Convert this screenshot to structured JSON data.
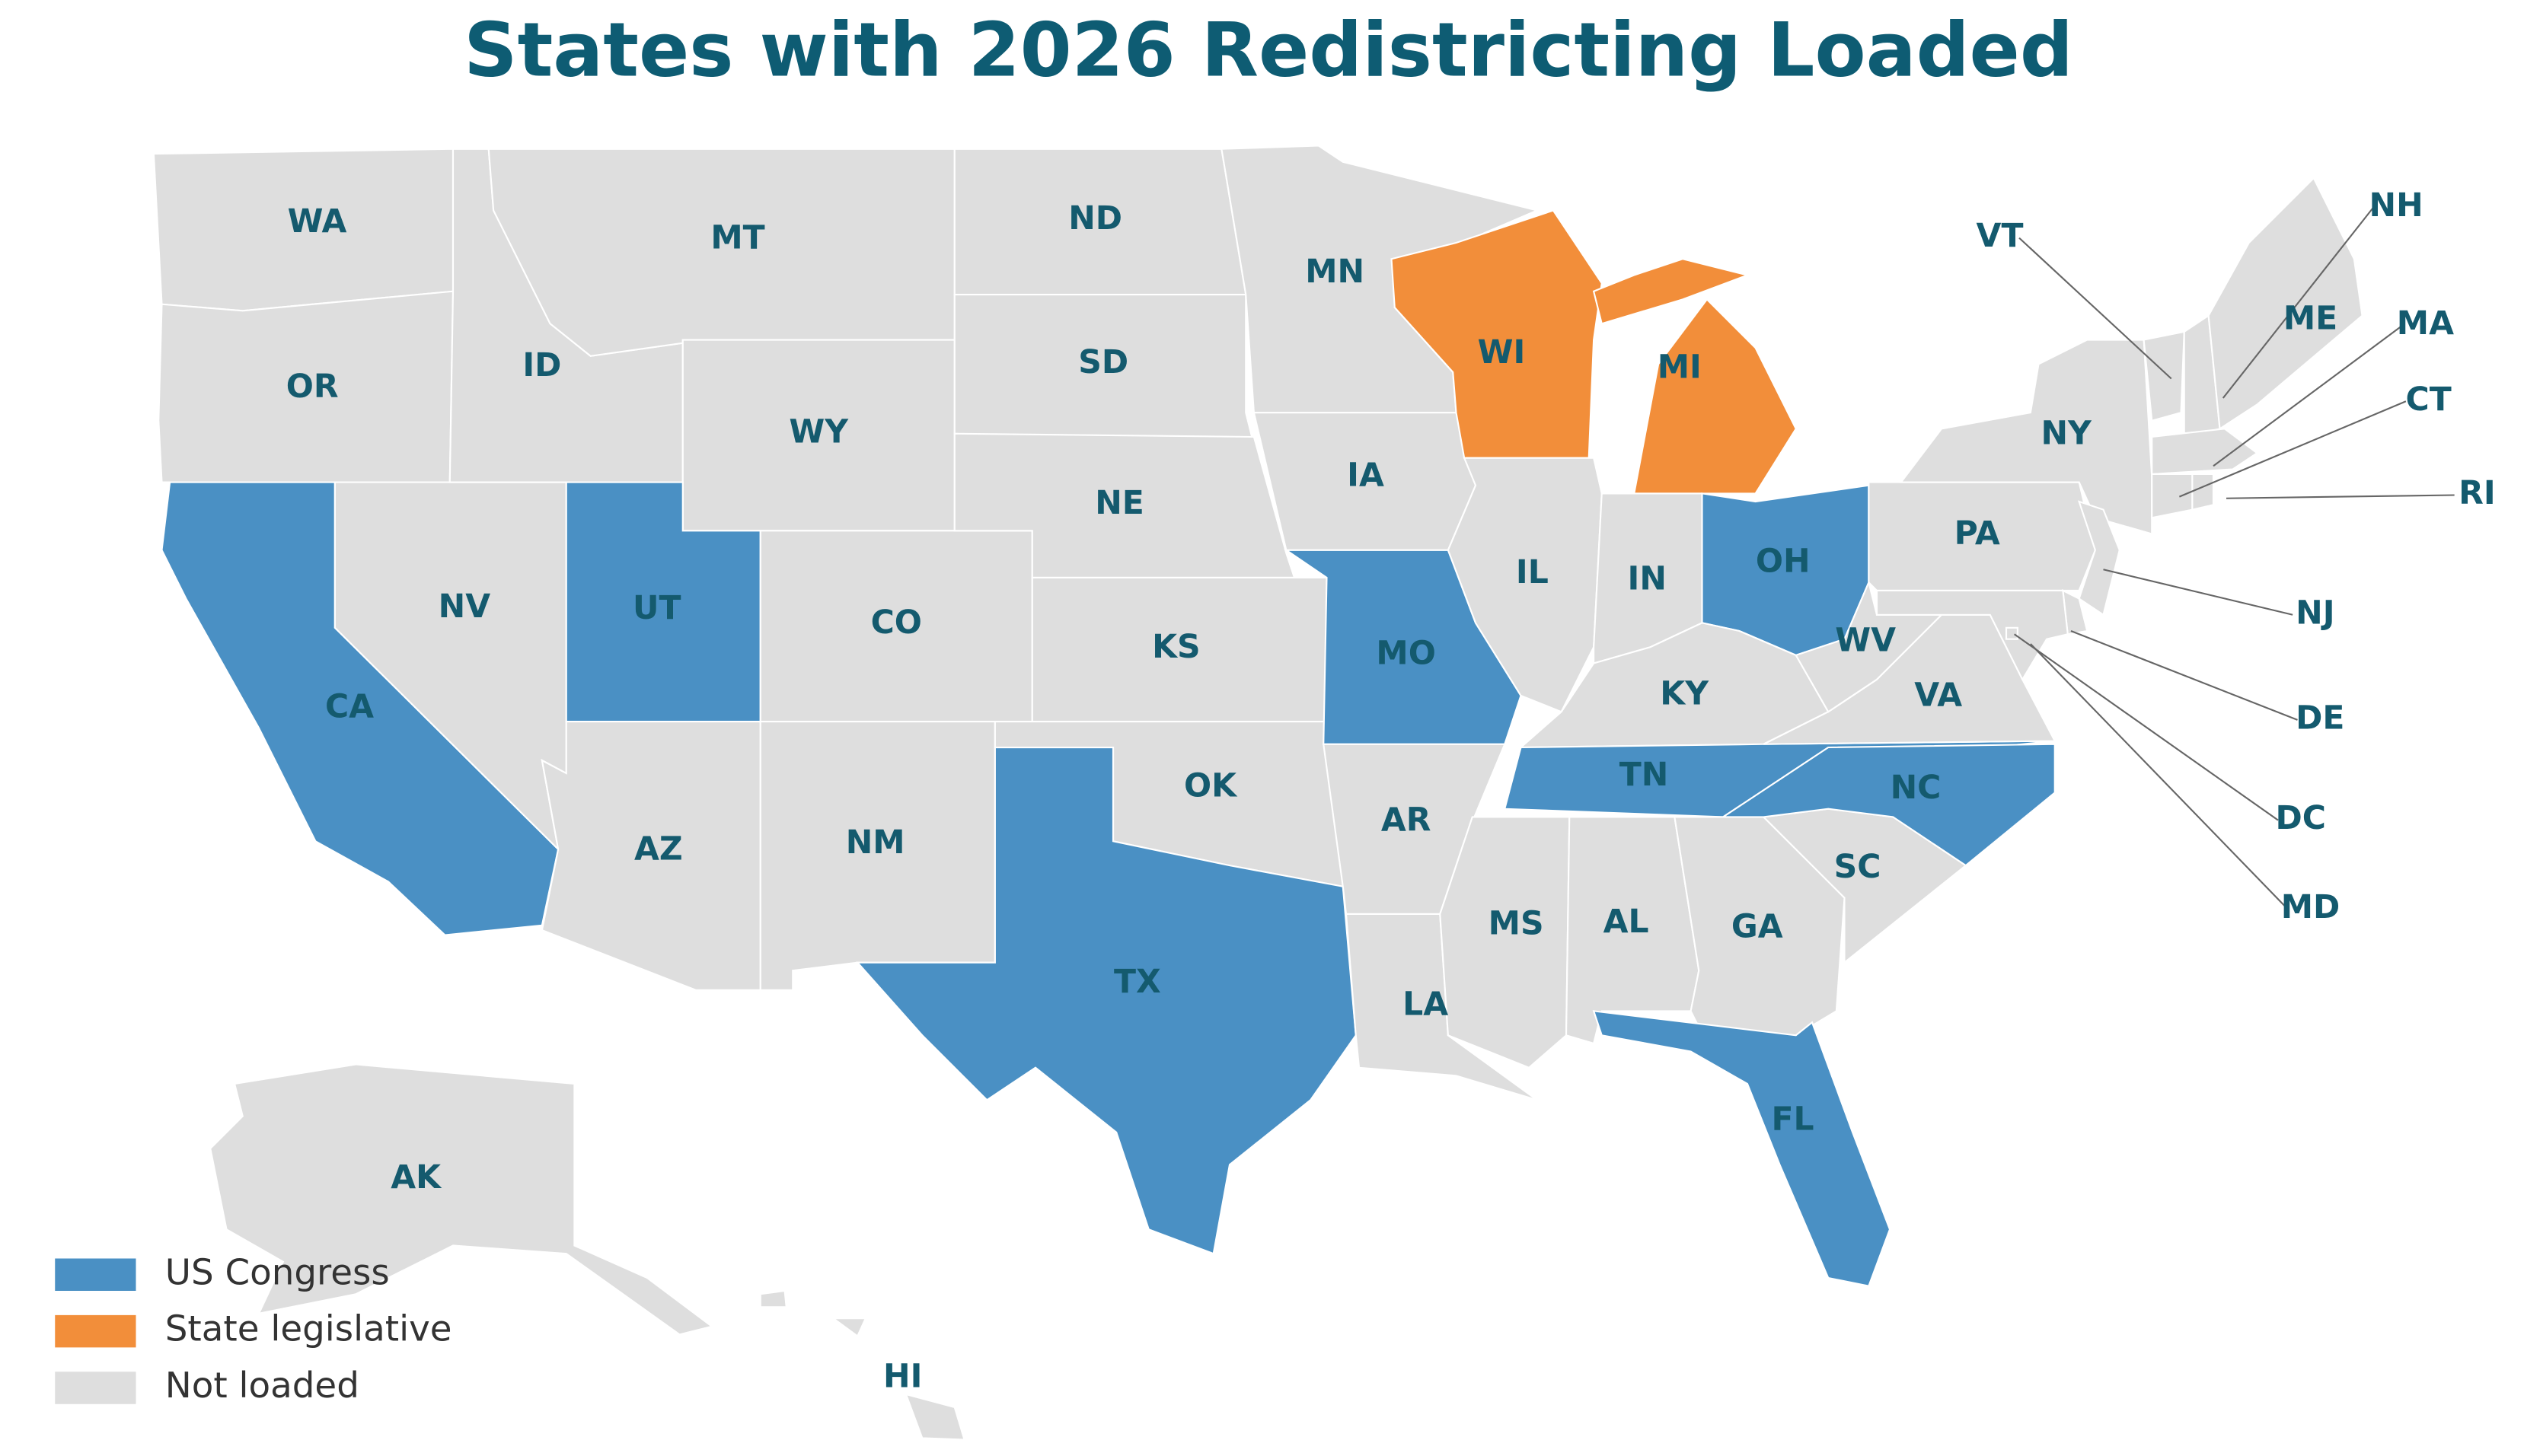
{
  "title": "States with 2026 Redistricting Loaded",
  "legend": [
    {
      "label": "US Congress",
      "color": "#4a90c4"
    },
    {
      "label": "State legislative",
      "color": "#f28e3a"
    },
    {
      "label": "Not loaded",
      "color": "#dedede"
    }
  ],
  "states": [
    {
      "label": "WA",
      "color": "#dedede"
    },
    {
      "label": "OR",
      "color": "#dedede"
    },
    {
      "label": "CA",
      "color": "#4a90c4"
    },
    {
      "label": "NV",
      "color": "#dedede"
    },
    {
      "label": "ID",
      "color": "#dedede"
    },
    {
      "label": "MT",
      "color": "#dedede"
    },
    {
      "label": "WY",
      "color": "#dedede"
    },
    {
      "label": "UT",
      "color": "#4a90c4"
    },
    {
      "label": "CO",
      "color": "#dedede"
    },
    {
      "label": "AZ",
      "color": "#dedede"
    },
    {
      "label": "NM",
      "color": "#dedede"
    },
    {
      "label": "ND",
      "color": "#dedede"
    },
    {
      "label": "SD",
      "color": "#dedede"
    },
    {
      "label": "NE",
      "color": "#dedede"
    },
    {
      "label": "KS",
      "color": "#dedede"
    },
    {
      "label": "OK",
      "color": "#dedede"
    },
    {
      "label": "TX",
      "color": "#4a90c4"
    },
    {
      "label": "MN",
      "color": "#dedede"
    },
    {
      "label": "IA",
      "color": "#dedede"
    },
    {
      "label": "MO",
      "color": "#4a90c4"
    },
    {
      "label": "AR",
      "color": "#dedede"
    },
    {
      "label": "LA",
      "color": "#dedede"
    },
    {
      "label": "WI",
      "color": "#f28e3a"
    },
    {
      "label": "MI",
      "color": "#f28e3a"
    },
    {
      "label": "IL",
      "color": "#dedede"
    },
    {
      "label": "IN",
      "color": "#dedede"
    },
    {
      "label": "OH",
      "color": "#4a90c4"
    },
    {
      "label": "KY",
      "color": "#dedede"
    },
    {
      "label": "TN",
      "color": "#4a90c4"
    },
    {
      "label": "MS",
      "color": "#dedede"
    },
    {
      "label": "AL",
      "color": "#dedede"
    },
    {
      "label": "GA",
      "color": "#dedede"
    },
    {
      "label": "FL",
      "color": "#4a90c4"
    },
    {
      "label": "SC",
      "color": "#dedede"
    },
    {
      "label": "NC",
      "color": "#4a90c4"
    },
    {
      "label": "VA",
      "color": "#dedede"
    },
    {
      "label": "WV",
      "color": "#dedede"
    },
    {
      "label": "PA",
      "color": "#dedede"
    },
    {
      "label": "NY",
      "color": "#dedede"
    },
    {
      "label": "VT",
      "color": "#dedede"
    },
    {
      "label": "NH",
      "color": "#dedede"
    },
    {
      "label": "ME",
      "color": "#dedede"
    },
    {
      "label": "MA",
      "color": "#dedede"
    },
    {
      "label": "CT",
      "color": "#dedede"
    },
    {
      "label": "RI",
      "color": "#dedede"
    },
    {
      "label": "NJ",
      "color": "#dedede"
    },
    {
      "label": "DE",
      "color": "#dedede"
    },
    {
      "label": "MD",
      "color": "#dedede"
    },
    {
      "label": "DC",
      "color": "#dedede"
    },
    {
      "label": "AK",
      "color": "#dedede"
    },
    {
      "label": "HI",
      "color": "#dedede"
    }
  ]
}
